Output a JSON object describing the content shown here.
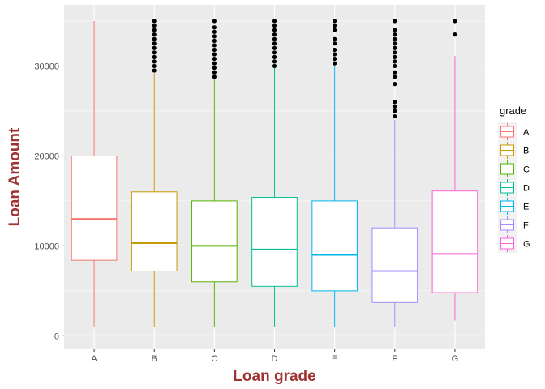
{
  "chart_data": {
    "type": "boxplot",
    "xlabel": "Loan grade",
    "ylabel": "Loan Amount",
    "ylim": [
      -1500,
      36800
    ],
    "yticks": [
      0,
      10000,
      20000,
      30000
    ],
    "ytick_labels": [
      "0",
      "10000",
      "20000",
      "30000"
    ],
    "grid": true,
    "legend": {
      "title": "grade",
      "position": "right"
    },
    "categories": [
      "A",
      "B",
      "C",
      "D",
      "E",
      "F",
      "G"
    ],
    "colors": [
      "#F8766D",
      "#C49A00",
      "#53B400",
      "#00C094",
      "#00B6EB",
      "#A58AFF",
      "#FB61D7"
    ],
    "boxes": [
      {
        "grade": "A",
        "min": 1000,
        "q1": 8400,
        "median": 13000,
        "q3": 20000,
        "max": 35000,
        "outliers": []
      },
      {
        "grade": "B",
        "min": 1000,
        "q1": 7200,
        "median": 10300,
        "q3": 16000,
        "max": 29200,
        "outliers": [
          29500,
          30000,
          30500,
          31000,
          31500,
          32000,
          32500,
          33000,
          33500,
          34000,
          34500,
          35000
        ]
      },
      {
        "grade": "C",
        "min": 1000,
        "q1": 6000,
        "median": 10000,
        "q3": 15000,
        "max": 28500,
        "outliers": [
          28800,
          29300,
          29800,
          30300,
          30800,
          31300,
          31800,
          32300,
          32800,
          33300,
          33800,
          34300,
          35000
        ]
      },
      {
        "grade": "D",
        "min": 1000,
        "q1": 5500,
        "median": 9600,
        "q3": 15400,
        "max": 29900,
        "outliers": [
          30000,
          30500,
          31000,
          31500,
          32000,
          32500,
          33000,
          33500,
          34000,
          34500,
          35000
        ]
      },
      {
        "grade": "E",
        "min": 1000,
        "q1": 5000,
        "median": 9000,
        "q3": 15000,
        "max": 30000,
        "outliers": [
          30300,
          30800,
          31300,
          31800,
          32500,
          33000,
          34000,
          34500,
          35000
        ]
      },
      {
        "grade": "F",
        "min": 1000,
        "q1": 3700,
        "median": 7200,
        "q3": 12000,
        "max": 24000,
        "outliers": [
          24400,
          25000,
          25500,
          26000,
          28000,
          28800,
          29300,
          30000,
          30500,
          31000,
          31500,
          32000,
          32500,
          33000,
          33500,
          34000,
          35000
        ]
      },
      {
        "grade": "G",
        "min": 1700,
        "q1": 4800,
        "median": 9100,
        "q3": 16100,
        "max": 31100,
        "outliers": [
          33500,
          35000
        ]
      }
    ]
  }
}
